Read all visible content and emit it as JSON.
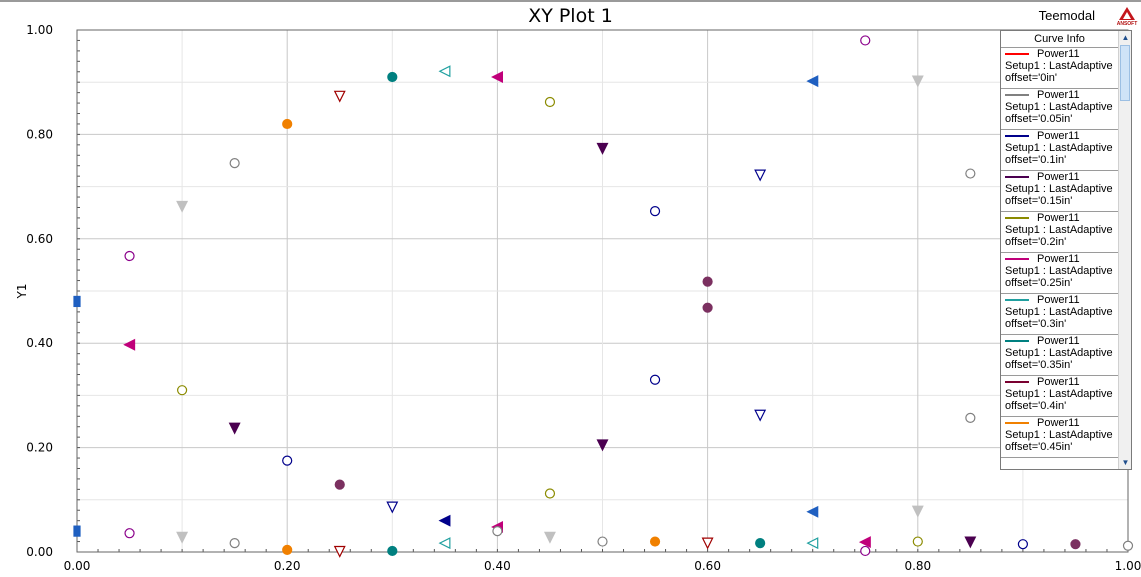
{
  "header": {
    "title": "XY Plot 1",
    "design": "Teemodal",
    "logo_text": "ANSOFT"
  },
  "legend": {
    "title": "Curve Info",
    "entries": [
      {
        "name": "Power11",
        "setup": "Setup1 : LastAdaptive",
        "variation": "offset='0in'",
        "color": "#ff0000"
      },
      {
        "name": "Power11",
        "setup": "Setup1 : LastAdaptive",
        "variation": "offset='0.05in'",
        "color": "#808080"
      },
      {
        "name": "Power11",
        "setup": "Setup1 : LastAdaptive",
        "variation": "offset='0.1in'",
        "color": "#00008b"
      },
      {
        "name": "Power11",
        "setup": "Setup1 : LastAdaptive",
        "variation": "offset='0.15in'",
        "color": "#4b0050"
      },
      {
        "name": "Power11",
        "setup": "Setup1 : LastAdaptive",
        "variation": "offset='0.2in'",
        "color": "#8b8b00"
      },
      {
        "name": "Power11",
        "setup": "Setup1 : LastAdaptive",
        "variation": "offset='0.25in'",
        "color": "#c0007a"
      },
      {
        "name": "Power11",
        "setup": "Setup1 : LastAdaptive",
        "variation": "offset='0.3in'",
        "color": "#20a0a0"
      },
      {
        "name": "Power11",
        "setup": "Setup1 : LastAdaptive",
        "variation": "offset='0.35in'",
        "color": "#008080"
      },
      {
        "name": "Power11",
        "setup": "Setup1 : LastAdaptive",
        "variation": "offset='0.4in'",
        "color": "#7a0030"
      },
      {
        "name": "Power11",
        "setup": "Setup1 : LastAdaptive",
        "variation": "offset='0.45in'",
        "color": "#f08000"
      }
    ]
  },
  "chart_data": {
    "type": "scatter",
    "title": "XY Plot 1",
    "xlabel": "",
    "ylabel": "Y1",
    "xlim": [
      0,
      1
    ],
    "ylim": [
      0,
      1
    ],
    "x_ticks": [
      "0.00",
      "0.20",
      "0.40",
      "0.60",
      "0.80",
      "1.00"
    ],
    "y_ticks": [
      "0.00",
      "0.20",
      "0.40",
      "0.60",
      "0.80",
      "1.00"
    ],
    "grid": true,
    "legend": "right",
    "points": [
      {
        "x": 0.0,
        "y": 0.48,
        "marker": "square",
        "filled": true,
        "color": "#1f5fc0"
      },
      {
        "x": 0.0,
        "y": 0.04,
        "marker": "square",
        "filled": true,
        "color": "#1f5fc0"
      },
      {
        "x": 0.05,
        "y": 0.567,
        "marker": "circle",
        "filled": false,
        "color": "#8b008b"
      },
      {
        "x": 0.05,
        "y": 0.397,
        "marker": "triangle-left",
        "filled": true,
        "color": "#c0007a"
      },
      {
        "x": 0.05,
        "y": 0.036,
        "marker": "circle",
        "filled": false,
        "color": "#8b008b"
      },
      {
        "x": 0.1,
        "y": 0.662,
        "marker": "triangle-down",
        "filled": true,
        "color": "#c0c0c0"
      },
      {
        "x": 0.1,
        "y": 0.31,
        "marker": "circle",
        "filled": false,
        "color": "#8b8b00"
      },
      {
        "x": 0.1,
        "y": 0.028,
        "marker": "triangle-down",
        "filled": true,
        "color": "#c0c0c0"
      },
      {
        "x": 0.15,
        "y": 0.745,
        "marker": "circle",
        "filled": false,
        "color": "#808080"
      },
      {
        "x": 0.15,
        "y": 0.237,
        "marker": "triangle-down",
        "filled": true,
        "color": "#4b0050"
      },
      {
        "x": 0.15,
        "y": 0.017,
        "marker": "circle",
        "filled": false,
        "color": "#808080"
      },
      {
        "x": 0.2,
        "y": 0.82,
        "marker": "circle",
        "filled": true,
        "color": "#f08000"
      },
      {
        "x": 0.2,
        "y": 0.175,
        "marker": "circle",
        "filled": false,
        "color": "#00008b"
      },
      {
        "x": 0.2,
        "y": 0.004,
        "marker": "circle",
        "filled": true,
        "color": "#f08000"
      },
      {
        "x": 0.25,
        "y": 0.873,
        "marker": "triangle-down",
        "filled": false,
        "color": "#a00000"
      },
      {
        "x": 0.25,
        "y": 0.129,
        "marker": "circle",
        "filled": true,
        "color": "#7b3060"
      },
      {
        "x": 0.25,
        "y": 0.001,
        "marker": "triangle-down",
        "filled": false,
        "color": "#a00000"
      },
      {
        "x": 0.3,
        "y": 0.91,
        "marker": "circle",
        "filled": true,
        "color": "#008080"
      },
      {
        "x": 0.3,
        "y": 0.086,
        "marker": "triangle-down",
        "filled": false,
        "color": "#00008b"
      },
      {
        "x": 0.3,
        "y": 0.002,
        "marker": "circle",
        "filled": true,
        "color": "#008080"
      },
      {
        "x": 0.35,
        "y": 0.921,
        "marker": "triangle-left",
        "filled": false,
        "color": "#20a0a0"
      },
      {
        "x": 0.35,
        "y": 0.06,
        "marker": "triangle-left",
        "filled": true,
        "color": "#00008b"
      },
      {
        "x": 0.35,
        "y": 0.017,
        "marker": "triangle-left",
        "filled": false,
        "color": "#20a0a0"
      },
      {
        "x": 0.4,
        "y": 0.91,
        "marker": "triangle-left",
        "filled": true,
        "color": "#c0007a"
      },
      {
        "x": 0.4,
        "y": 0.048,
        "marker": "triangle-left",
        "filled": true,
        "color": "#c0007a"
      },
      {
        "x": 0.4,
        "y": 0.04,
        "marker": "circle",
        "filled": false,
        "color": "#808080"
      },
      {
        "x": 0.45,
        "y": 0.862,
        "marker": "circle",
        "filled": false,
        "color": "#8b8b00"
      },
      {
        "x": 0.45,
        "y": 0.112,
        "marker": "circle",
        "filled": false,
        "color": "#8b8b00"
      },
      {
        "x": 0.45,
        "y": 0.028,
        "marker": "triangle-down",
        "filled": true,
        "color": "#c0c0c0"
      },
      {
        "x": 0.5,
        "y": 0.773,
        "marker": "triangle-down",
        "filled": true,
        "color": "#4b0050"
      },
      {
        "x": 0.5,
        "y": 0.205,
        "marker": "triangle-down",
        "filled": true,
        "color": "#4b0050"
      },
      {
        "x": 0.5,
        "y": 0.02,
        "marker": "circle",
        "filled": false,
        "color": "#808080"
      },
      {
        "x": 0.55,
        "y": 0.653,
        "marker": "circle",
        "filled": false,
        "color": "#00008b"
      },
      {
        "x": 0.55,
        "y": 0.33,
        "marker": "circle",
        "filled": false,
        "color": "#00008b"
      },
      {
        "x": 0.55,
        "y": 0.02,
        "marker": "circle",
        "filled": true,
        "color": "#f08000"
      },
      {
        "x": 0.6,
        "y": 0.518,
        "marker": "circle",
        "filled": true,
        "color": "#7b3060"
      },
      {
        "x": 0.6,
        "y": 0.468,
        "marker": "circle",
        "filled": true,
        "color": "#7b3060"
      },
      {
        "x": 0.6,
        "y": 0.017,
        "marker": "triangle-down",
        "filled": false,
        "color": "#a00000"
      },
      {
        "x": 0.65,
        "y": 0.722,
        "marker": "triangle-down",
        "filled": false,
        "color": "#00008b"
      },
      {
        "x": 0.65,
        "y": 0.262,
        "marker": "triangle-down",
        "filled": false,
        "color": "#00008b"
      },
      {
        "x": 0.65,
        "y": 0.017,
        "marker": "circle",
        "filled": true,
        "color": "#008080"
      },
      {
        "x": 0.7,
        "y": 0.902,
        "marker": "triangle-left",
        "filled": true,
        "color": "#1f5fc0"
      },
      {
        "x": 0.7,
        "y": 0.077,
        "marker": "triangle-left",
        "filled": true,
        "color": "#1f5fc0"
      },
      {
        "x": 0.7,
        "y": 0.017,
        "marker": "triangle-left",
        "filled": false,
        "color": "#20a0a0"
      },
      {
        "x": 0.75,
        "y": 0.98,
        "marker": "circle",
        "filled": false,
        "color": "#8b008b"
      },
      {
        "x": 0.75,
        "y": 0.019,
        "marker": "triangle-left",
        "filled": true,
        "color": "#c0007a"
      },
      {
        "x": 0.75,
        "y": 0.002,
        "marker": "circle",
        "filled": false,
        "color": "#8b008b"
      },
      {
        "x": 0.8,
        "y": 0.902,
        "marker": "triangle-down",
        "filled": true,
        "color": "#c0c0c0"
      },
      {
        "x": 0.8,
        "y": 0.078,
        "marker": "triangle-down",
        "filled": true,
        "color": "#c0c0c0"
      },
      {
        "x": 0.8,
        "y": 0.02,
        "marker": "circle",
        "filled": false,
        "color": "#8b8b00"
      },
      {
        "x": 0.85,
        "y": 0.725,
        "marker": "circle",
        "filled": false,
        "color": "#808080"
      },
      {
        "x": 0.85,
        "y": 0.257,
        "marker": "circle",
        "filled": false,
        "color": "#808080"
      },
      {
        "x": 0.85,
        "y": 0.019,
        "marker": "triangle-down",
        "filled": true,
        "color": "#4b0050"
      },
      {
        "x": 0.9,
        "y": 0.015,
        "marker": "circle",
        "filled": false,
        "color": "#00008b"
      },
      {
        "x": 0.95,
        "y": 0.015,
        "marker": "circle",
        "filled": true,
        "color": "#7b3060"
      },
      {
        "x": 1.0,
        "y": 0.012,
        "marker": "circle",
        "filled": false,
        "color": "#808080"
      }
    ]
  }
}
